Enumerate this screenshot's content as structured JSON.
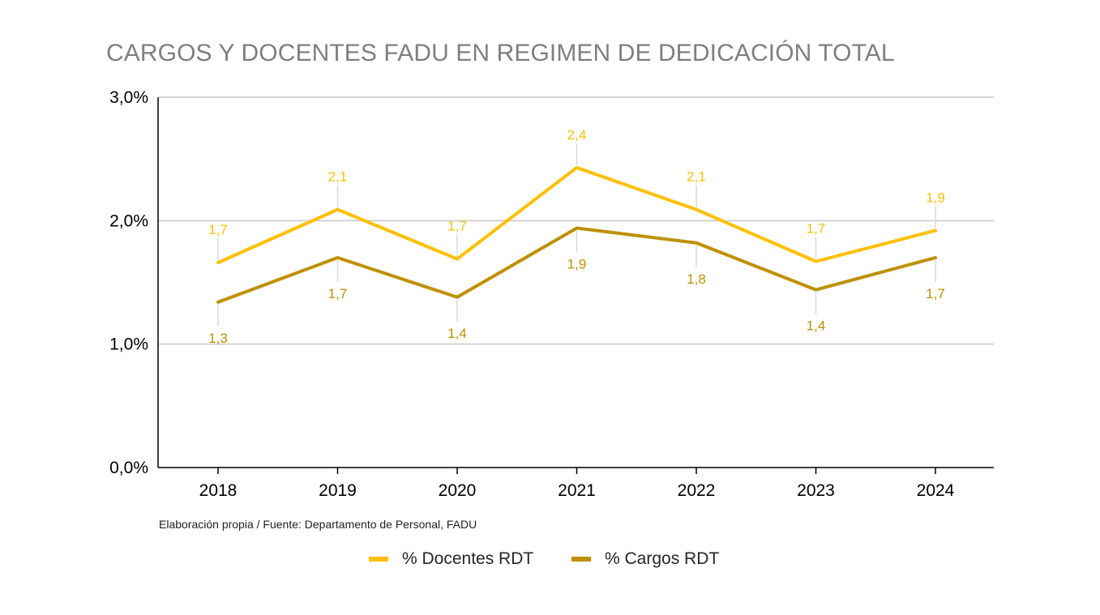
{
  "chart_data": {
    "type": "line",
    "title": "CARGOS Y DOCENTES FADU EN REGIMEN DE DEDICACIÓN TOTAL",
    "categories": [
      "2018",
      "2019",
      "2020",
      "2021",
      "2022",
      "2023",
      "2024"
    ],
    "y_ticks": [
      "0,0%",
      "1,0%",
      "2,0%",
      "3,0%"
    ],
    "ylim": [
      0,
      3
    ],
    "grid": true,
    "legend_position": "bottom",
    "series": [
      {
        "name": "% Docentes RDT",
        "color": "#ffc000",
        "values": [
          1.66,
          2.09,
          1.69,
          2.43,
          2.09,
          1.67,
          1.92
        ],
        "labels": [
          "1,7",
          "2,1",
          "1,7",
          "2,4",
          "2,1",
          "1,7",
          "1,9"
        ],
        "label_position": "above"
      },
      {
        "name": "% Cargos RDT",
        "color": "#bf9000",
        "values": [
          1.34,
          1.7,
          1.38,
          1.94,
          1.82,
          1.44,
          1.7
        ],
        "labels": [
          "1,3",
          "1,7",
          "1,4",
          "1,9",
          "1,8",
          "1,4",
          "1,7"
        ],
        "label_position": "below"
      }
    ]
  },
  "source_note": "Elaboración propia / Fuente: Departamento de Personal, FADU"
}
